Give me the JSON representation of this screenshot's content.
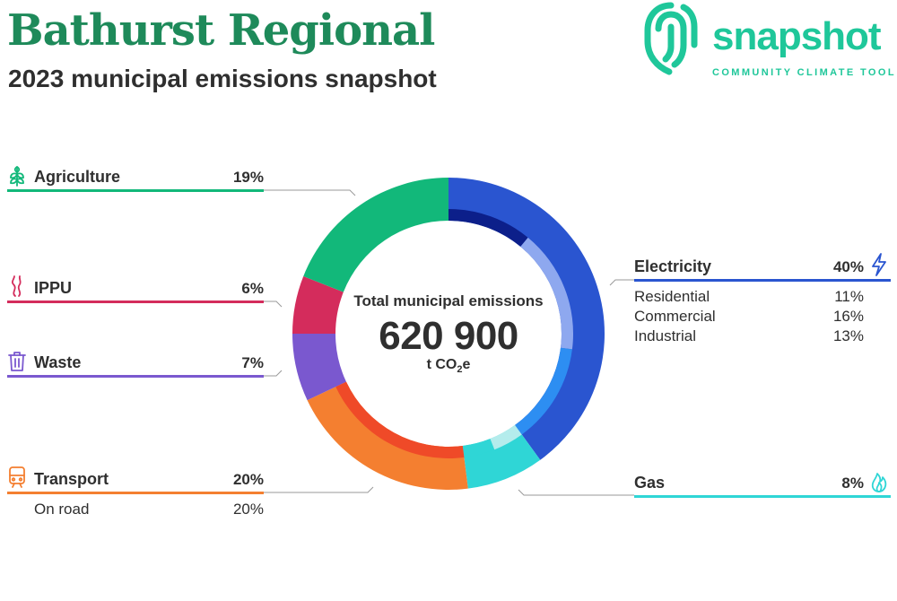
{
  "header": {
    "title": "Bathurst Regional",
    "subtitle": "2023 municipal emissions snapshot"
  },
  "logo": {
    "word": "snapshot",
    "tagline": "COMMUNITY CLIMATE TOOL",
    "color": "#1fc79a"
  },
  "center": {
    "label": "Total municipal emissions",
    "value": "620 900",
    "unit_main": "t CO",
    "unit_sub": "2",
    "unit_tail": "e"
  },
  "chart_data": {
    "type": "pie",
    "title": "",
    "total": 620900,
    "unit": "t CO2e",
    "categories": [
      {
        "key": "electricity",
        "name": "Electricity",
        "value": 40,
        "label": "40%",
        "color": "#2a55d0",
        "icon": "lightning-icon",
        "subcategories": [
          {
            "name": "Residential",
            "value": 11,
            "label": "11%",
            "color": "#0c1f8a"
          },
          {
            "name": "Commercial",
            "value": 16,
            "label": "16%",
            "color": "#8ea8ef"
          },
          {
            "name": "Industrial",
            "value": 13,
            "label": "13%",
            "color": "#2d8ef2"
          }
        ]
      },
      {
        "key": "gas",
        "name": "Gas",
        "value": 8,
        "label": "8%",
        "color": "#2fd6d6",
        "icon": "flame-icon",
        "subcategories": [
          {
            "name": "",
            "value": 4,
            "color": "#b4ecec"
          },
          {
            "name": "",
            "value": 4,
            "color": "#2fd6d6"
          }
        ]
      },
      {
        "key": "transport",
        "name": "Transport",
        "value": 20,
        "label": "20%",
        "color": "#f47f30",
        "icon": "train-icon",
        "subcategories": [
          {
            "name": "On road",
            "value": 20,
            "label": "20%",
            "color": "#ef4a28"
          }
        ]
      },
      {
        "key": "waste",
        "name": "Waste",
        "value": 7,
        "label": "7%",
        "color": "#7a58cf",
        "icon": "bin-icon",
        "subcategories": []
      },
      {
        "key": "ippu",
        "name": "IPPU",
        "value": 6,
        "label": "6%",
        "color": "#d42c5c",
        "icon": "smoke-icon",
        "subcategories": []
      },
      {
        "key": "agriculture",
        "name": "Agriculture",
        "value": 19,
        "label": "19%",
        "color": "#12b87a",
        "icon": "wheat-icon",
        "subcategories": []
      }
    ]
  }
}
